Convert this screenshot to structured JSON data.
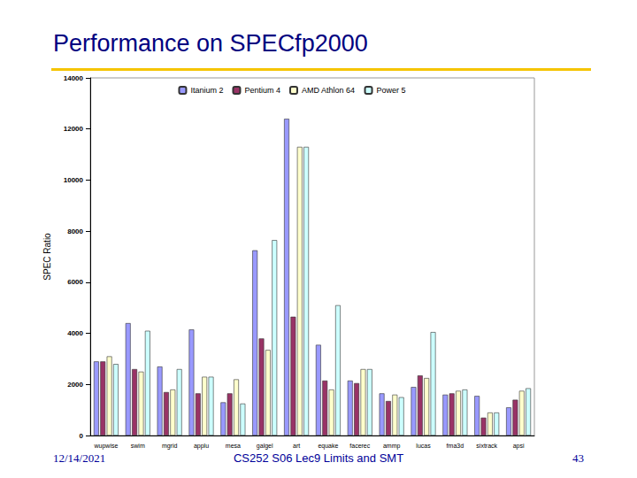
{
  "chart_data": {
    "type": "bar",
    "title": "Performance on SPECfp2000",
    "y_label": "SPEC Ratio",
    "categories": [
      "wupwise",
      "swim",
      "mgrid",
      "applu",
      "mesa",
      "galgel",
      "art",
      "equake",
      "facerec",
      "ammp",
      "lucas",
      "fma3d",
      "sixtrack",
      "apsi"
    ],
    "series": [
      {
        "name": "Itanium 2",
        "color": "#9999ff",
        "values": [
          2900,
          4400,
          2700,
          4150,
          1300,
          7250,
          12400,
          3550,
          2150,
          1650,
          1900,
          1600,
          1550,
          1100
        ]
      },
      {
        "name": "Pentium 4",
        "color": "#993366",
        "values": [
          2900,
          2600,
          1700,
          1650,
          1650,
          3800,
          4650,
          2150,
          2050,
          1350,
          2350,
          1650,
          700,
          1400
        ]
      },
      {
        "name": "AMD Athlon 64",
        "color": "#ffffcc",
        "values": [
          3100,
          2500,
          1800,
          2300,
          2200,
          3350,
          11300,
          1800,
          2600,
          1600,
          2250,
          1750,
          900,
          1750
        ]
      },
      {
        "name": "Power 5",
        "color": "#ccffff",
        "values": [
          2800,
          4100,
          2600,
          2300,
          1250,
          7650,
          11300,
          5100,
          2600,
          1500,
          4050,
          1800,
          900,
          1850
        ]
      }
    ],
    "ylim": [
      0,
      14000
    ],
    "yticks": [
      0,
      2000,
      4000,
      6000,
      8000,
      10000,
      12000,
      14000
    ],
    "grid": false,
    "legend": "top"
  },
  "footer": {
    "date": "12/14/2021",
    "course": "CS252 S06 Lec9 Limits and SMT",
    "page": "43"
  }
}
